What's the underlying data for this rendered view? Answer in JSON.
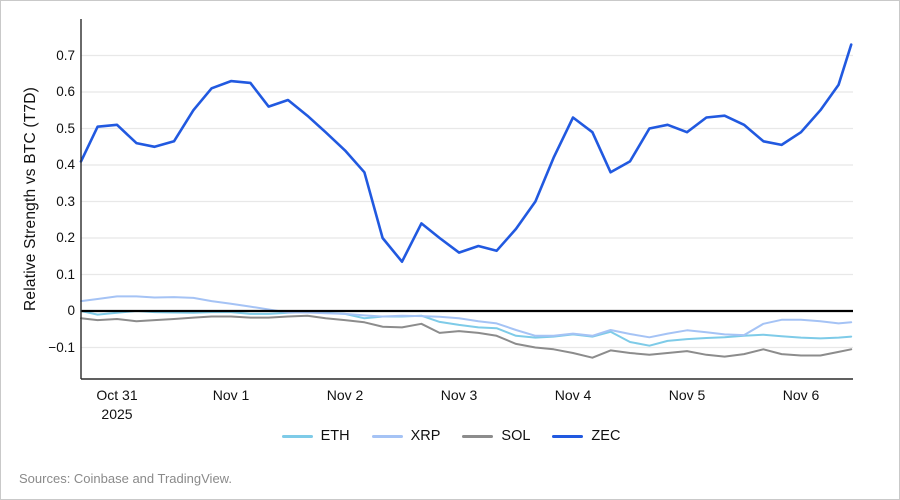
{
  "figure": {
    "source_note": "Sources: Coinbase and TradingView."
  },
  "chart_data": {
    "type": "line",
    "title": "",
    "xlabel": "",
    "ylabel": "Relative Strength vs BTC (T7D)",
    "grid": "horizontal-only",
    "zero_line": true,
    "legend_position": "bottom-center",
    "ylim": [
      -0.186,
      0.8
    ],
    "xlim_days": [
      -0.33,
      6.44
    ],
    "x_unit": "days since Oct 31 2025 (4-hour sampling)",
    "y_ticks": [
      {
        "v": 0.7,
        "label": "0.7"
      },
      {
        "v": 0.6,
        "label": "0.6"
      },
      {
        "v": 0.5,
        "label": "0.5"
      },
      {
        "v": 0.4,
        "label": "0.4"
      },
      {
        "v": 0.3,
        "label": "0.3"
      },
      {
        "v": 0.2,
        "label": "0.2"
      },
      {
        "v": 0.1,
        "label": "0.1"
      },
      {
        "v": 0,
        "label": "0"
      },
      {
        "v": -0.1,
        "label": "−0.1"
      }
    ],
    "x_ticks": [
      {
        "day": 0,
        "label": "Oct 31",
        "sublabel": "2025"
      },
      {
        "day": 1,
        "label": "Nov 1"
      },
      {
        "day": 2,
        "label": "Nov 2"
      },
      {
        "day": 3,
        "label": "Nov 3"
      },
      {
        "day": 4,
        "label": "Nov 4"
      },
      {
        "day": 5,
        "label": "Nov 5"
      },
      {
        "day": 6,
        "label": "Nov 6"
      }
    ],
    "x_days": [
      -0.33,
      -0.17,
      0,
      0.17,
      0.33,
      0.5,
      0.67,
      0.83,
      1,
      1.17,
      1.33,
      1.5,
      1.67,
      1.83,
      2,
      2.17,
      2.33,
      2.5,
      2.67,
      2.83,
      3,
      3.17,
      3.33,
      3.5,
      3.67,
      3.83,
      4,
      4.17,
      4.33,
      4.5,
      4.67,
      4.83,
      5,
      5.17,
      5.33,
      5.5,
      5.67,
      5.83,
      6,
      6.17,
      6.33,
      6.44
    ],
    "series": [
      {
        "name": "ETH",
        "color": "#7ecbe8",
        "values": [
          0,
          -0.01,
          -0.005,
          0,
          -0.003,
          -0.004,
          -0.005,
          -0.003,
          -0.003,
          -0.008,
          -0.008,
          -0.005,
          -0.003,
          -0.005,
          -0.008,
          -0.02,
          -0.015,
          -0.015,
          -0.013,
          -0.03,
          -0.038,
          -0.045,
          -0.047,
          -0.068,
          -0.073,
          -0.07,
          -0.064,
          -0.07,
          -0.057,
          -0.085,
          -0.095,
          -0.082,
          -0.077,
          -0.074,
          -0.072,
          -0.068,
          -0.065,
          -0.069,
          -0.073,
          -0.075,
          -0.073,
          -0.07
        ]
      },
      {
        "name": "XRP",
        "color": "#a5c3f5",
        "values": [
          0.027,
          0.033,
          0.04,
          0.04,
          0.037,
          0.038,
          0.036,
          0.027,
          0.02,
          0.012,
          0.004,
          -0.004,
          -0.004,
          -0.006,
          -0.008,
          -0.012,
          -0.015,
          -0.013,
          -0.014,
          -0.016,
          -0.02,
          -0.028,
          -0.034,
          -0.052,
          -0.068,
          -0.068,
          -0.062,
          -0.068,
          -0.052,
          -0.063,
          -0.072,
          -0.062,
          -0.053,
          -0.058,
          -0.064,
          -0.066,
          -0.035,
          -0.024,
          -0.024,
          -0.028,
          -0.034,
          -0.031
        ]
      },
      {
        "name": "SOL",
        "color": "#8c8c8c",
        "values": [
          -0.02,
          -0.025,
          -0.022,
          -0.028,
          -0.025,
          -0.022,
          -0.018,
          -0.015,
          -0.015,
          -0.018,
          -0.018,
          -0.015,
          -0.013,
          -0.02,
          -0.025,
          -0.031,
          -0.043,
          -0.045,
          -0.035,
          -0.06,
          -0.055,
          -0.06,
          -0.068,
          -0.09,
          -0.1,
          -0.105,
          -0.115,
          -0.128,
          -0.108,
          -0.115,
          -0.12,
          -0.115,
          -0.11,
          -0.12,
          -0.125,
          -0.118,
          -0.105,
          -0.118,
          -0.122,
          -0.122,
          -0.112,
          -0.105
        ]
      },
      {
        "name": "ZEC",
        "color": "#2159e0",
        "values": [
          0.41,
          0.505,
          0.51,
          0.46,
          0.45,
          0.465,
          0.55,
          0.61,
          0.63,
          0.625,
          0.56,
          0.578,
          0.535,
          0.49,
          0.44,
          0.38,
          0.2,
          0.135,
          0.24,
          0.2,
          0.16,
          0.178,
          0.165,
          0.225,
          0.3,
          0.42,
          0.53,
          0.49,
          0.38,
          0.41,
          0.5,
          0.51,
          0.49,
          0.53,
          0.535,
          0.51,
          0.465,
          0.455,
          0.49,
          0.55,
          0.62,
          0.73
        ]
      }
    ],
    "colors": {
      "gridline": "#e8e8e8",
      "zero_line": "#000000",
      "axis_spine": "#2b2b2b",
      "tick_text": "#111111",
      "source_text": "#8a8a8a"
    }
  }
}
